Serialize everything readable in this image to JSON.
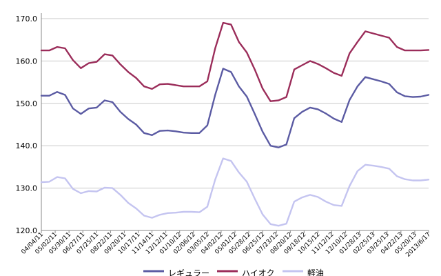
{
  "chart_data": {
    "type": "line",
    "title": "",
    "xlabel": "",
    "ylabel": "",
    "ylim": [
      120,
      170
    ],
    "yticks": [
      "170.0",
      "160.0",
      "150.0",
      "140.0",
      "130.0",
      "120.0"
    ],
    "grid": "horizontal",
    "legend": "bottom",
    "xtick_labels": [
      "04/04/11",
      "05/02/11",
      "05/30/11",
      "06/27/11",
      "07/25/11",
      "08/22/11",
      "09/20/11",
      "10/17/11",
      "11/14/11",
      "12/12/11",
      "01/10/12",
      "02/06/12",
      "03/05/12",
      "04/02/12",
      "05/01/12",
      "05/28/12",
      "06/25/12",
      "07/23/12",
      "08/20/12",
      "09/18/12",
      "10/15/12",
      "11/12/12",
      "12/10/12",
      "01/28/13",
      "02/25/13",
      "03/25/13",
      "04/22/13",
      "05/20/13",
      "2013/6/17"
    ],
    "series": [
      {
        "name": "ハイオク",
        "color": "#9b2d5a",
        "values": [
          162.5,
          162.5,
          163.3,
          163.0,
          160.2,
          158.3,
          159.5,
          159.8,
          161.6,
          161.3,
          159.2,
          157.4,
          156.0,
          154.0,
          153.4,
          154.5,
          154.6,
          154.3,
          154.0,
          154.0,
          154.0,
          155.2,
          163.0,
          169.0,
          168.6,
          164.5,
          162.0,
          158.0,
          153.5,
          150.5,
          150.7,
          151.5,
          158.0,
          159.0,
          160.0,
          159.3,
          158.3,
          157.2,
          156.5,
          161.8,
          164.5,
          167.0,
          166.5,
          166.0,
          165.5,
          163.3,
          162.5,
          162.5,
          162.5,
          162.6
        ]
      },
      {
        "name": "レギュラー",
        "color": "#5b5ba3",
        "values": [
          151.8,
          151.8,
          152.7,
          152.0,
          148.8,
          147.5,
          148.8,
          149.0,
          150.7,
          150.3,
          148.0,
          146.3,
          145.0,
          143.0,
          142.5,
          143.5,
          143.6,
          143.4,
          143.1,
          143.0,
          143.0,
          144.8,
          152.0,
          158.2,
          157.4,
          154.0,
          151.6,
          147.5,
          143.3,
          140.0,
          139.6,
          140.3,
          146.5,
          148.0,
          149.0,
          148.6,
          147.6,
          146.4,
          145.6,
          150.8,
          154.0,
          156.2,
          155.7,
          155.2,
          154.6,
          152.6,
          151.7,
          151.5,
          151.6,
          152.0
        ]
      },
      {
        "name": "軽油",
        "color": "#c4c4f0",
        "values": [
          131.4,
          131.5,
          132.6,
          132.3,
          129.8,
          128.8,
          129.3,
          129.2,
          130.1,
          130.0,
          128.4,
          126.5,
          125.2,
          123.5,
          123.0,
          123.7,
          124.1,
          124.2,
          124.4,
          124.4,
          124.3,
          125.6,
          132.0,
          137.0,
          136.4,
          133.7,
          131.5,
          127.5,
          123.8,
          121.5,
          121.1,
          121.6,
          126.8,
          127.8,
          128.4,
          127.9,
          126.8,
          126.0,
          125.8,
          130.5,
          134.0,
          135.5,
          135.3,
          135.0,
          134.6,
          132.8,
          132.1,
          131.8,
          131.8,
          132.0
        ]
      }
    ]
  },
  "legend": [
    {
      "label": "レギュラー",
      "color": "#5b5ba3"
    },
    {
      "label": "ハイオク",
      "color": "#9b2d5a"
    },
    {
      "label": "軽油",
      "color": "#c4c4f0"
    }
  ]
}
